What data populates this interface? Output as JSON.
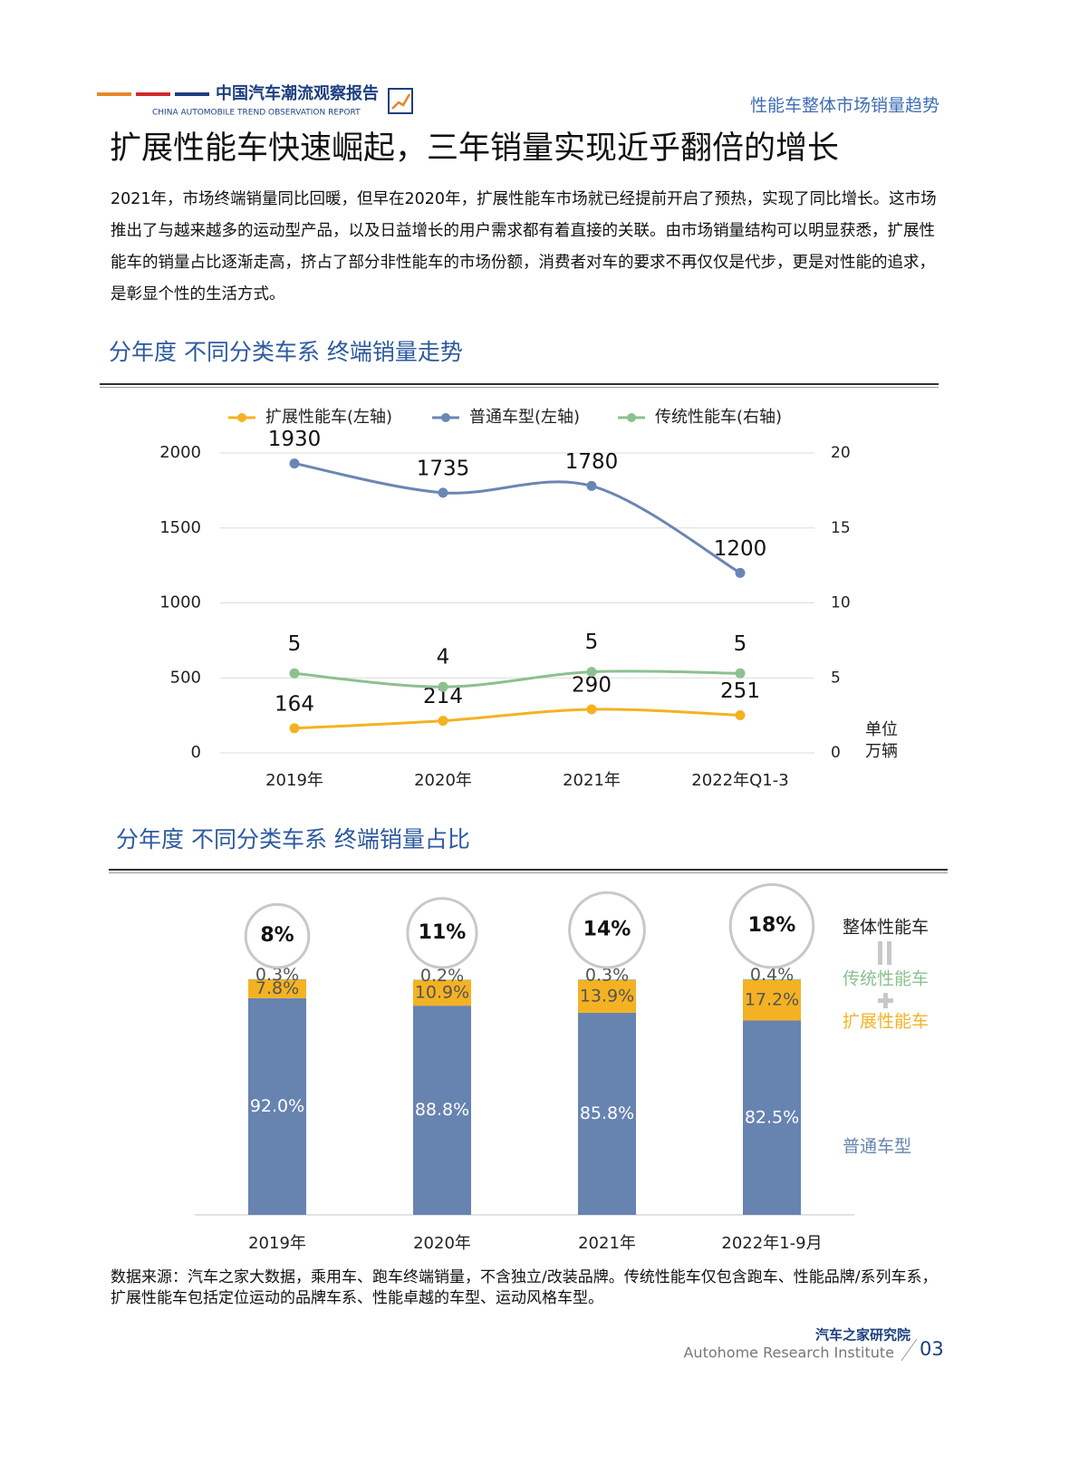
{
  "header": {
    "report_title": "中国汽车潮流观察报告",
    "report_subtitle": "CHINA AUTOMOBILE TREND OBSERVATION REPORT",
    "section": "性能车整体市场销量趋势"
  },
  "title": "扩展性能车快速崛起，三年销量实现近乎翻倍的增长",
  "paragraph": "2021年，市场终端销量同比回暖，但早在2020年，扩展性能车市场就已经提前开启了预热，实现了同比增长。这市场推出了与越来越多的运动型产品，以及日益增长的用户需求都有着直接的关联。由市场销量结构可以明显获悉，扩展性能车的销量占比逐渐走高，挤占了部分非性能车的市场份额，消费者对车的要求不再仅仅是代步，更是对性能的追求，是彰显个性的生活方式。",
  "chart_data": [
    {
      "type": "line",
      "title": "分年度 不同分类车系 终端销量走势",
      "categories": [
        "2019年",
        "2020年",
        "2021年",
        "2022年Q1-3"
      ],
      "series": [
        {
          "name": "扩展性能车(左轴)",
          "color": "#f4b223",
          "values": [
            164,
            214,
            290,
            251
          ]
        },
        {
          "name": "普通车型(左轴)",
          "color": "#6a86b4",
          "values": [
            1930,
            1735,
            1780,
            1200
          ]
        },
        {
          "name": "传统性能车(右轴)",
          "color": "#8dc08f",
          "axis": "y2",
          "values": [
            5.3,
            4.4,
            5.4,
            5.3
          ],
          "value_labels": [
            "5",
            "4",
            "5",
            "5"
          ]
        }
      ],
      "ylim": [
        0,
        2000
      ],
      "yticks": [
        0,
        500,
        1000,
        1500,
        2000
      ],
      "y2lim": [
        0,
        20
      ],
      "y2ticks": [
        0,
        5,
        10,
        15,
        20
      ],
      "grid": true,
      "legend": "top",
      "annotations": [
        "单位",
        "万辆"
      ]
    },
    {
      "type": "stacked_bar",
      "title": "分年度 不同分类车系 终端销量占比",
      "categories": [
        "2019年",
        "2020年",
        "2021年",
        "2022年1-9月"
      ],
      "series": [
        {
          "name": "普通车型",
          "color": "#6783b0",
          "values": [
            92.0,
            88.8,
            85.8,
            82.5
          ],
          "value_labels": [
            "92.0%",
            "88.8%",
            "85.8%",
            "82.5%"
          ]
        },
        {
          "name": "扩展性能车",
          "color": "#f4b223",
          "values": [
            7.8,
            10.9,
            13.9,
            17.2
          ],
          "value_labels": [
            "7.8%",
            "10.9%",
            "13.9%",
            "17.2%"
          ]
        },
        {
          "name": "传统性能车",
          "color": "#8dc08f",
          "values": [
            0.3,
            0.2,
            0.3,
            0.4
          ],
          "value_labels": [
            "0.3%",
            "0.2%",
            "0.3%",
            "0.4%"
          ]
        }
      ],
      "total": {
        "name": "整体性能车",
        "values": [
          8,
          11,
          14,
          18
        ],
        "value_labels": [
          "8%",
          "11%",
          "14%",
          "18%"
        ]
      },
      "ylim": [
        0,
        100
      ]
    }
  ],
  "source_note": "数据来源：汽车之家大数据，乘用车、跑车终端销量，不含独立/改装品牌。传统性能车仅包含跑车、性能品牌/系列车系，扩展性能车包括定位运动的品牌车系、性能卓越的车型、运动风格车型。",
  "footer": {
    "org": "汽车之家研究院",
    "org_en": "Autohome Research Institute",
    "page": "03"
  }
}
